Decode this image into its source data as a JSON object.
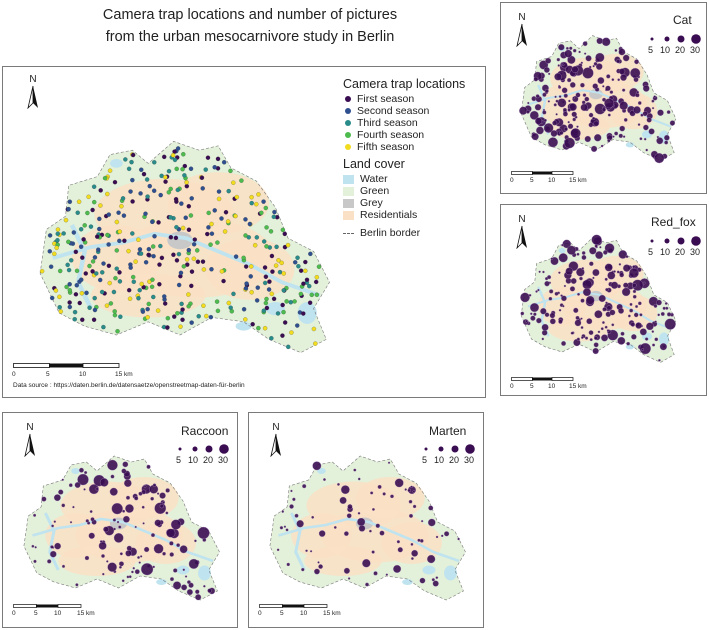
{
  "title_line1": "Camera trap locations and number of pictures",
  "title_line2": "from the urban mesocarnivore study in Berlin",
  "north_label": "N",
  "main": {
    "legend_title": "Camera trap locations",
    "seasons": [
      {
        "label": "First season",
        "color": "#3a0d52"
      },
      {
        "label": "Second season",
        "color": "#2f4f8f"
      },
      {
        "label": "Third season",
        "color": "#2a8c8a"
      },
      {
        "label": "Fourth season",
        "color": "#4dbb4d"
      },
      {
        "label": "Fifth season",
        "color": "#f2dc1f"
      }
    ],
    "landcover_title": "Land cover",
    "landcover": [
      {
        "label": "Water",
        "color": "#bfe3ef"
      },
      {
        "label": "Green",
        "color": "#e3f0da"
      },
      {
        "label": "Grey",
        "color": "#c8c8c8"
      },
      {
        "label": "Residentials",
        "color": "#fae0c4"
      }
    ],
    "border_label": "Berlin border",
    "source": "Data source : https://daten.berlin.de/datensaetze/openstreetmap-daten-für-berlin"
  },
  "scale_ticks": [
    "0",
    "5",
    "10",
    "15 km"
  ],
  "size_legend": [
    "5",
    "10",
    "20",
    "30"
  ],
  "species": [
    {
      "name": "Cat"
    },
    {
      "name": "Red_fox"
    },
    {
      "name": "Raccoon"
    },
    {
      "name": "Marten"
    }
  ],
  "point_color": "#3a0d52"
}
